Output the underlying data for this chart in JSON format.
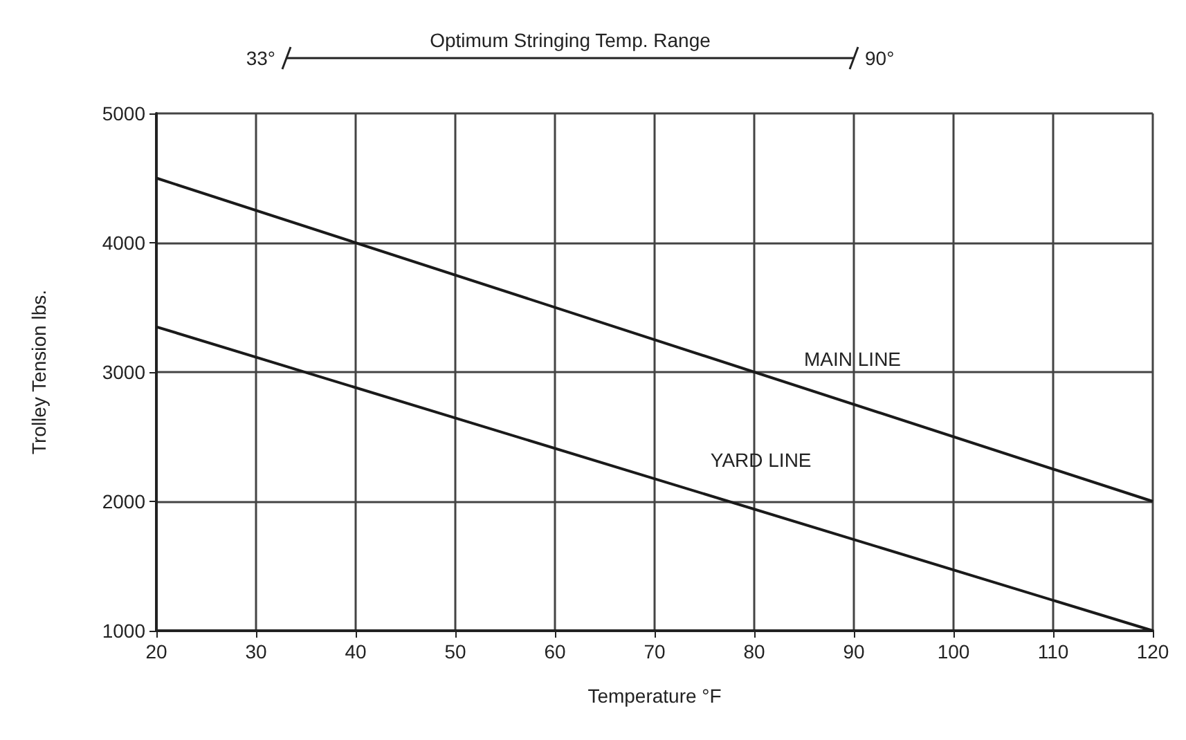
{
  "chart_data": {
    "type": "line",
    "xlabel": "Temperature °F",
    "ylabel": "Trolley Tension lbs.",
    "x": [
      20,
      120
    ],
    "series": [
      {
        "name": "MAIN LINE",
        "color": "#1a1a1a",
        "values": [
          4500,
          2000
        ]
      },
      {
        "name": "YARD LINE",
        "color": "#1a1a1a",
        "values": [
          3350,
          1000
        ]
      }
    ],
    "xlim": [
      20,
      120
    ],
    "xticks": [
      20,
      30,
      40,
      50,
      60,
      70,
      80,
      90,
      100,
      110,
      120
    ],
    "ylim": [
      1000,
      5000
    ],
    "yticks": [
      1000,
      2000,
      3000,
      4000,
      5000
    ],
    "grid": true,
    "legend": false,
    "marker": "none",
    "line_style": "solid",
    "annotations": [
      "Optimum Stringing Temp. Range",
      "33°",
      "90°"
    ]
  }
}
